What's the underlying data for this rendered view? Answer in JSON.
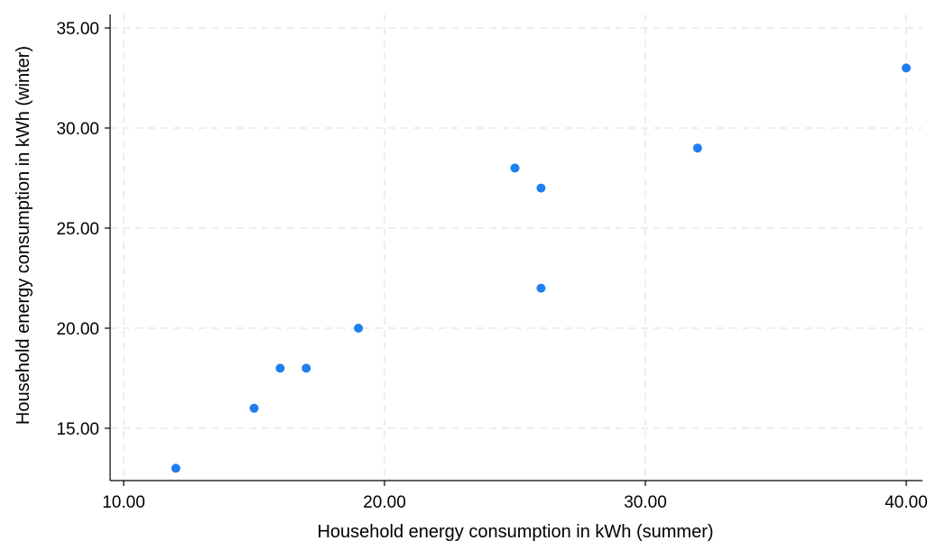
{
  "chart_data": {
    "type": "scatter",
    "title": "",
    "xlabel": "Household energy consumption in kWh (summer)",
    "ylabel": "Household energy consumption in kWh (winter)",
    "xlim": [
      10,
      40
    ],
    "ylim": [
      13,
      35
    ],
    "x_ticks": [
      10,
      20,
      30,
      40
    ],
    "y_ticks": [
      15,
      20,
      25,
      30,
      35
    ],
    "x_tick_labels": [
      "10.00",
      "20.00",
      "30.00",
      "40.00"
    ],
    "y_tick_labels": [
      "15.00",
      "20.00",
      "25.00",
      "30.00",
      "35.00"
    ],
    "grid": true,
    "marker_color": "#1f7ff0",
    "points": [
      {
        "x": 12,
        "y": 13
      },
      {
        "x": 15,
        "y": 16
      },
      {
        "x": 16,
        "y": 18
      },
      {
        "x": 17,
        "y": 18
      },
      {
        "x": 19,
        "y": 20
      },
      {
        "x": 25,
        "y": 28
      },
      {
        "x": 26,
        "y": 27
      },
      {
        "x": 26,
        "y": 22
      },
      {
        "x": 32,
        "y": 29
      },
      {
        "x": 40,
        "y": 33
      }
    ]
  }
}
